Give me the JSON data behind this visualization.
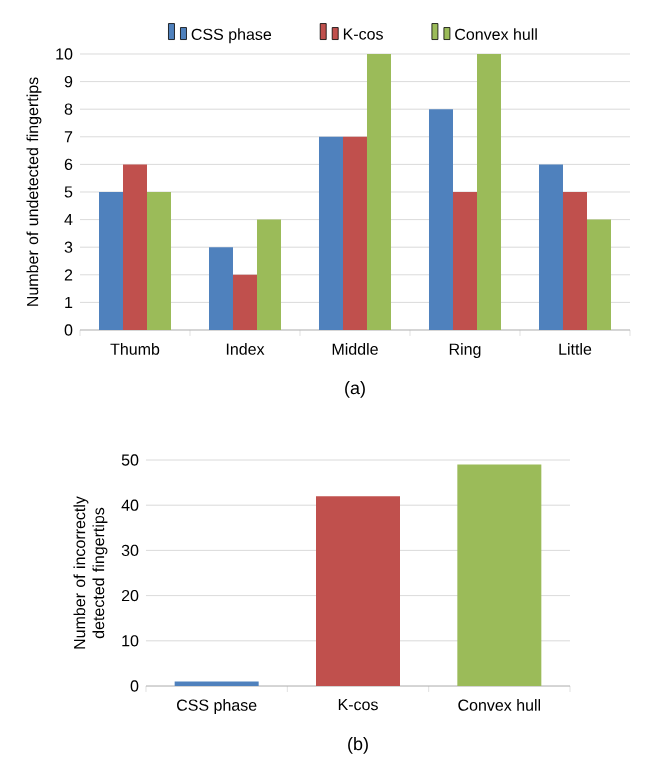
{
  "chart_data": [
    {
      "type": "bar",
      "ylabel": "Number of undetected fingertips",
      "categories": [
        "Thumb",
        "Index",
        "Middle",
        "Ring",
        "Little"
      ],
      "series": [
        {
          "name": "CSS phase",
          "color": "#4f81bd",
          "values": [
            5,
            3,
            7,
            8,
            6
          ]
        },
        {
          "name": "K-cos",
          "color": "#c0504d",
          "values": [
            6,
            2,
            7,
            5,
            5
          ]
        },
        {
          "name": "Convex hull",
          "color": "#9bbb59",
          "values": [
            5,
            4,
            10,
            10,
            4
          ]
        }
      ],
      "ylim": [
        0,
        10
      ],
      "yticks": [
        0,
        1,
        2,
        3,
        4,
        5,
        6,
        7,
        8,
        9,
        10
      ],
      "grid": "y",
      "legend": "top",
      "annotations": [
        "(a)"
      ]
    },
    {
      "type": "bar",
      "ylabel": "Number of incorrectly detected fingertips",
      "categories": [
        "CSS phase",
        "K-cos",
        "Convex hull"
      ],
      "values": [
        1,
        42,
        49
      ],
      "colors": [
        "#4f81bd",
        "#c0504d",
        "#9bbb59"
      ],
      "ylim": [
        0,
        50
      ],
      "yticks": [
        0,
        10,
        20,
        30,
        40,
        50
      ],
      "grid": "y",
      "annotations": [
        "(b)"
      ]
    }
  ]
}
